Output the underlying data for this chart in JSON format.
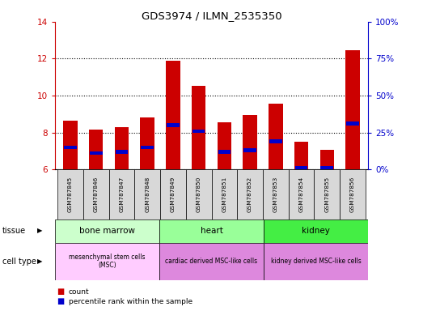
{
  "title": "GDS3974 / ILMN_2535350",
  "samples": [
    "GSM787845",
    "GSM787846",
    "GSM787847",
    "GSM787848",
    "GSM787849",
    "GSM787850",
    "GSM787851",
    "GSM787852",
    "GSM787853",
    "GSM787854",
    "GSM787855",
    "GSM787856"
  ],
  "counts": [
    8.65,
    8.15,
    8.3,
    8.8,
    11.9,
    10.55,
    8.55,
    8.95,
    9.55,
    7.5,
    7.05,
    12.45
  ],
  "percentile_right": [
    15,
    11,
    12,
    15,
    30,
    26,
    12,
    13,
    19,
    1,
    1,
    31
  ],
  "ymin": 6,
  "ymax": 14,
  "yright_min": 0,
  "yright_max": 100,
  "yticks_left": [
    6,
    8,
    10,
    12,
    14
  ],
  "yticks_right": [
    0,
    25,
    50,
    75,
    100
  ],
  "bar_color": "#cc0000",
  "percentile_color": "#0000cc",
  "bar_width": 0.55,
  "left_axis_color": "#cc0000",
  "right_axis_color": "#0000cc",
  "background_color": "#ffffff",
  "legend_count_color": "#cc0000",
  "legend_percentile_color": "#0000cc",
  "tissue_data": [
    {
      "label": "bone marrow",
      "start": 0,
      "end": 4,
      "color": "#ccffcc"
    },
    {
      "label": "heart",
      "start": 4,
      "end": 8,
      "color": "#99ff99"
    },
    {
      "label": "kidney",
      "start": 8,
      "end": 12,
      "color": "#44ee44"
    }
  ],
  "cell_data": [
    {
      "label": "mesenchymal stem cells\n(MSC)",
      "start": 0,
      "end": 4,
      "color": "#ffccff"
    },
    {
      "label": "cardiac derived MSC-like cells",
      "start": 4,
      "end": 8,
      "color": "#dd88dd"
    },
    {
      "label": "kidney derived MSC-like cells",
      "start": 8,
      "end": 12,
      "color": "#dd88dd"
    }
  ]
}
